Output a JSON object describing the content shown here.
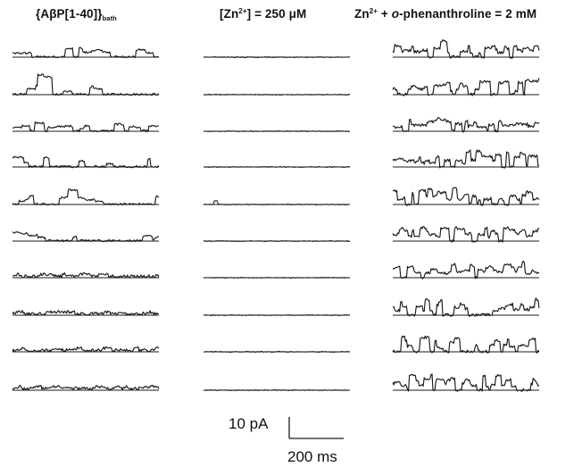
{
  "columns": [
    {
      "id": "left",
      "title_parts": {
        "a": "{AβP[1-40]}",
        "sub": "bath"
      },
      "activity": "amyloid"
    },
    {
      "id": "mid",
      "title_parts": {
        "a": "[Zn",
        "sup": "2+",
        "b": "] = 250 μM"
      },
      "activity": "blocked"
    },
    {
      "id": "right",
      "title_parts": {
        "a": "Zn",
        "sup": "2+",
        "b": " + ",
        "i": "o",
        "c": "-phenanthroline = 2 mM"
      },
      "activity": "restored"
    }
  ],
  "traces_per_column": 10,
  "scale_bar": {
    "current_label": "10 pA",
    "time_label": "200 ms"
  },
  "colors": {
    "trace": "#1a1a1a",
    "background": "#ffffff"
  }
}
